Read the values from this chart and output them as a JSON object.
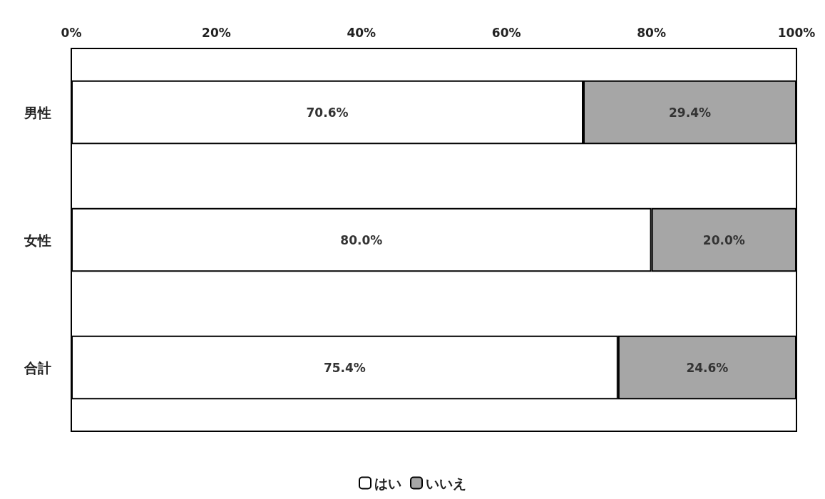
{
  "chart_data": {
    "type": "bar",
    "orientation": "horizontal",
    "stacked": true,
    "categories": [
      "男性",
      "女性",
      "合計"
    ],
    "series": [
      {
        "name": "はい",
        "color": "#ffffff",
        "values": [
          70.6,
          80.0,
          75.4
        ],
        "value_labels": [
          "70.6%",
          "80.0%",
          "75.4%"
        ]
      },
      {
        "name": "いいえ",
        "color": "#a6a6a6",
        "values": [
          29.4,
          20.0,
          24.6
        ],
        "value_labels": [
          "29.4%",
          "20.0%",
          "24.6%"
        ]
      }
    ],
    "xlim": [
      0,
      100
    ],
    "xticks": [
      {
        "value": 0,
        "label": "0%"
      },
      {
        "value": 20,
        "label": "20%"
      },
      {
        "value": 40,
        "label": "40%"
      },
      {
        "value": 60,
        "label": "60%"
      },
      {
        "value": 80,
        "label": "80%"
      },
      {
        "value": 100,
        "label": "100%"
      }
    ],
    "grid": false,
    "legend": "bottom"
  }
}
